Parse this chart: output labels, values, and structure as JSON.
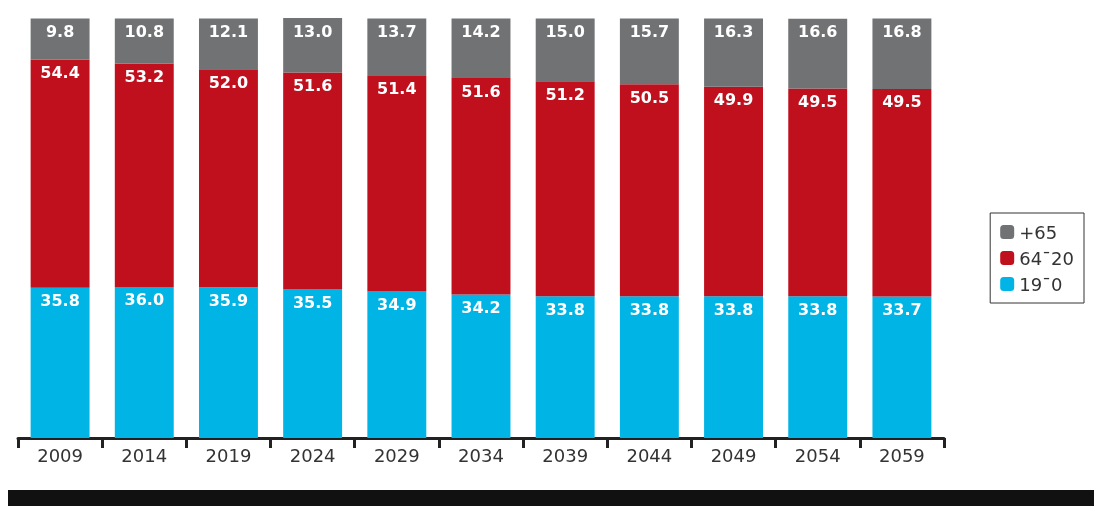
{
  "chart_data": {
    "type": "bar",
    "stacked": true,
    "legend": "right",
    "categories": [
      "2009",
      "2014",
      "2019",
      "2024",
      "2029",
      "2034",
      "2039",
      "2044",
      "2049",
      "2054",
      "2059"
    ],
    "series": [
      {
        "name": "19ˉ0",
        "color": "#00b4e6",
        "values": [
          35.8,
          36,
          35.9,
          35.5,
          34.9,
          34.2,
          33.8,
          33.8,
          33.8,
          33.8,
          33.7
        ],
        "value_labels": [
          "35.8",
          "36.0",
          "35.9",
          "35.5",
          "34.9",
          "34.2",
          "33.8",
          "33.8",
          "33.8",
          "33.8",
          "33.7"
        ]
      },
      {
        "name": "64ˉ20",
        "color": "#c0101e",
        "values": [
          54.4,
          53.2,
          52,
          51.6,
          51.4,
          51.6,
          51.2,
          50.5,
          49.9,
          49.5,
          49.5
        ],
        "value_labels": [
          "54.4",
          "53.2",
          "52.0",
          "51.6",
          "51.4",
          "51.6",
          "51.2",
          "50.5",
          "49.9",
          "49.5",
          "49.5"
        ]
      },
      {
        "name": "+65",
        "color": "#707274",
        "values": [
          9.8,
          10.8,
          12.1,
          13,
          13.7,
          14.2,
          15,
          15.7,
          16.3,
          16.6,
          16.8
        ],
        "value_labels": [
          "9.8",
          "10.8",
          "12.1",
          "13.0",
          "13.7",
          "14.2",
          "15.0",
          "15.7",
          "16.3",
          "16.6",
          "16.8"
        ]
      }
    ]
  }
}
